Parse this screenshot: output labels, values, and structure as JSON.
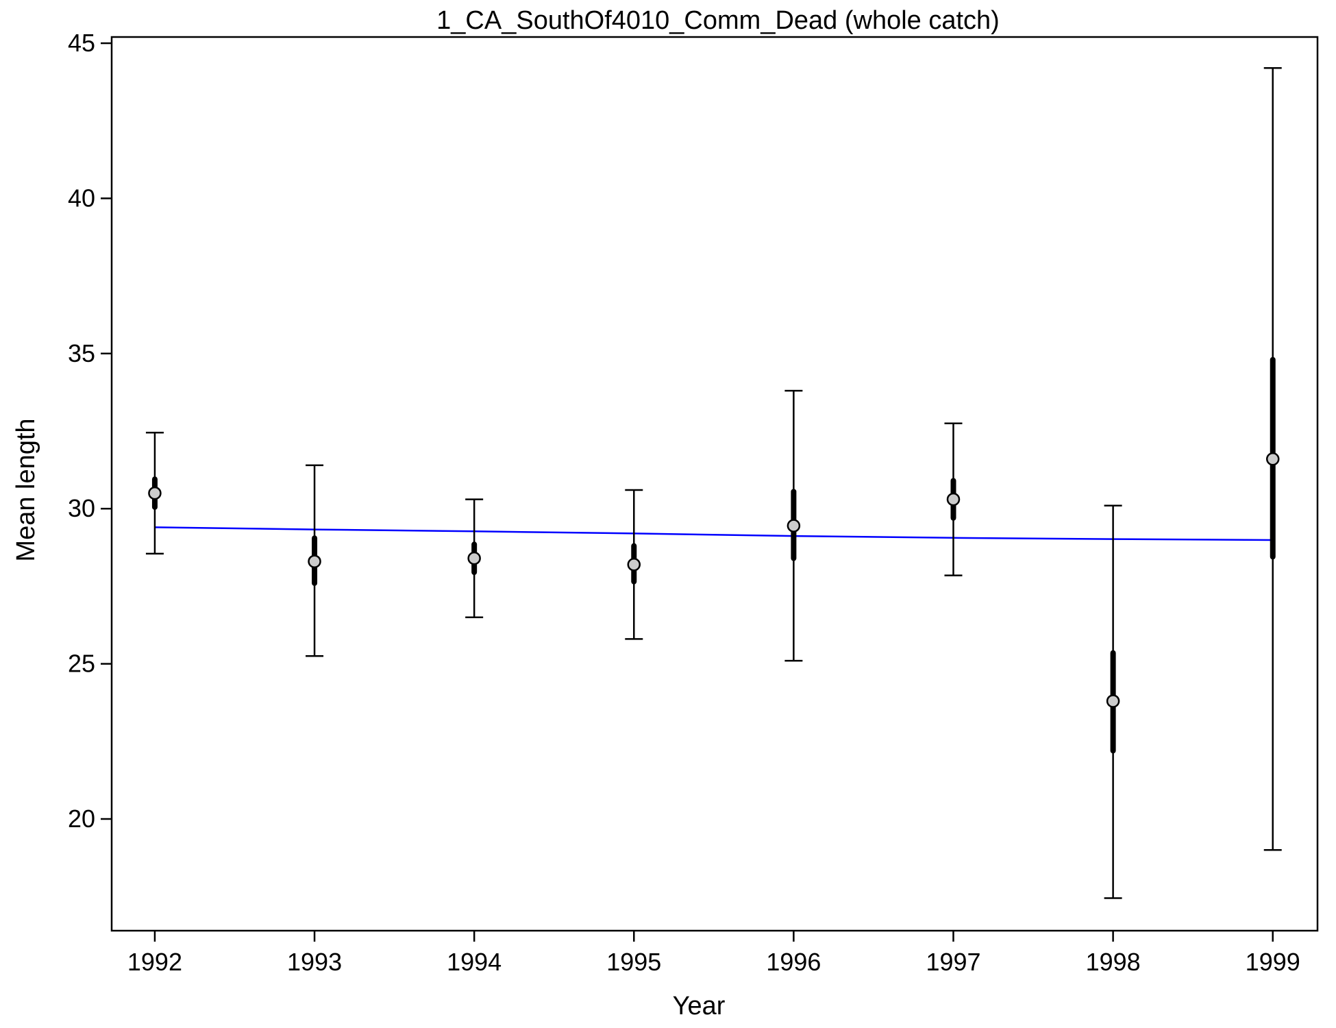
{
  "chart_data": {
    "type": "scatter",
    "title": "1_CA_SouthOf4010_Comm_Dead (whole catch)",
    "xlabel": "Year",
    "ylabel": "Mean length",
    "xlim": [
      1991.73,
      1999.28
    ],
    "ylim": [
      16.4,
      45.2
    ],
    "x_ticks": [
      1992,
      1993,
      1994,
      1995,
      1996,
      1997,
      1998,
      1999
    ],
    "y_ticks": [
      20,
      25,
      30,
      35,
      40,
      45
    ],
    "grid": false,
    "colors": {
      "observed_fill": "#cccccc",
      "observed_stroke": "#000000",
      "interval": "#000000",
      "expected_line": "#0000ff",
      "frame": "#000000"
    },
    "series": [
      {
        "values": [
          {
            "x": 1992,
            "y": 30.5,
            "inner": [
              30.05,
              30.95
            ],
            "outer": [
              28.55,
              32.45
            ]
          },
          {
            "x": 1993,
            "y": 28.3,
            "inner": [
              27.6,
              29.05
            ],
            "outer": [
              25.25,
              31.4
            ]
          },
          {
            "x": 1994,
            "y": 28.4,
            "inner": [
              27.95,
              28.85
            ],
            "outer": [
              26.5,
              30.3
            ]
          },
          {
            "x": 1995,
            "y": 28.2,
            "inner": [
              27.65,
              28.8
            ],
            "outer": [
              25.8,
              30.6
            ]
          },
          {
            "x": 1996,
            "y": 29.45,
            "inner": [
              28.4,
              30.55
            ],
            "outer": [
              25.1,
              33.8
            ]
          },
          {
            "x": 1997,
            "y": 30.3,
            "inner": [
              29.7,
              30.9
            ],
            "outer": [
              27.85,
              32.75
            ]
          },
          {
            "x": 1998,
            "y": 23.8,
            "inner": [
              22.2,
              25.35
            ],
            "outer": [
              17.45,
              30.1
            ]
          },
          {
            "x": 1999,
            "y": 31.6,
            "inner": [
              28.45,
              34.8
            ],
            "outer": [
              19.0,
              44.2
            ]
          }
        ]
      },
      {
        "values": [
          {
            "x": 1992,
            "y": 29.4
          },
          {
            "x": 1993,
            "y": 29.33
          },
          {
            "x": 1994,
            "y": 29.27
          },
          {
            "x": 1995,
            "y": 29.2
          },
          {
            "x": 1996,
            "y": 29.12
          },
          {
            "x": 1997,
            "y": 29.06
          },
          {
            "x": 1998,
            "y": 29.02
          },
          {
            "x": 1999,
            "y": 28.99
          }
        ]
      }
    ]
  }
}
